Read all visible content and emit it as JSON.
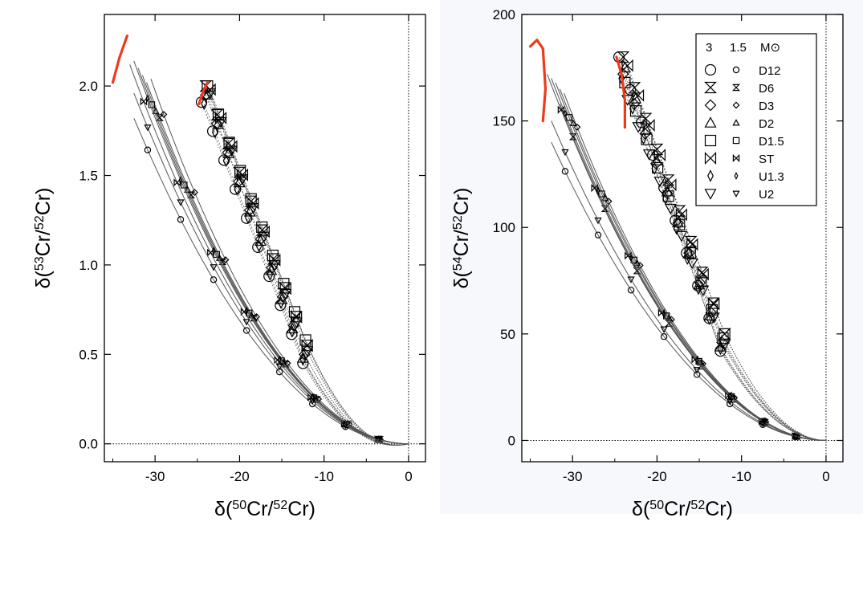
{
  "chart_data": [
    {
      "type": "scatter",
      "panel": "left",
      "xlim": [
        -36,
        2
      ],
      "ylim": [
        -0.1,
        2.4
      ],
      "xticks": [
        -30,
        -20,
        -10,
        0
      ],
      "yticks": [
        0.0,
        0.5,
        1.0,
        1.5,
        2.0
      ],
      "xtick_labels": [
        "-30",
        "-20",
        "-10",
        "0"
      ],
      "ytick_labels": [
        "0.0",
        "0.5",
        "1.0",
        "1.5",
        "2.0"
      ],
      "xlabel": "δ(⁵⁰Cr/⁵²Cr)",
      "ylabel": "δ(⁵³Cr/⁵²Cr)",
      "reference_lines": {
        "y": 0,
        "x": 0
      },
      "models_1_5": [
        {
          "model": "D12",
          "marker": "circle",
          "end": [
            -32.5,
            1.82
          ]
        },
        {
          "model": "D6",
          "marker": "hourglass",
          "end": [
            -31.0,
            2.02
          ]
        },
        {
          "model": "D3",
          "marker": "diamond",
          "end": [
            -30.5,
            2.04
          ]
        },
        {
          "model": "D2",
          "marker": "triangle",
          "end": [
            -31.5,
            2.06
          ]
        },
        {
          "model": "D1.5",
          "marker": "square",
          "end": [
            -32.0,
            2.1
          ]
        },
        {
          "model": "ST",
          "marker": "bowtie",
          "end": [
            -33.0,
            2.12
          ]
        },
        {
          "model": "U1.3",
          "marker": "thin-diamond",
          "end": [
            -32.5,
            2.14
          ]
        },
        {
          "model": "U2",
          "marker": "inv-triangle",
          "end": [
            -32.5,
            1.96
          ]
        }
      ],
      "models_3": [
        {
          "model": "D12",
          "marker": "circle",
          "start": [
            -24.5,
            1.91
          ],
          "end": [
            -12.5,
            0.45
          ]
        },
        {
          "model": "D6",
          "marker": "hourglass",
          "start": [
            -24.0,
            2.0
          ],
          "end": [
            -12.0,
            0.55
          ]
        },
        {
          "model": "D3",
          "marker": "diamond",
          "start": [
            -24.0,
            1.95
          ],
          "end": [
            -12.3,
            0.5
          ]
        },
        {
          "model": "D2",
          "marker": "triangle",
          "start": [
            -23.8,
            1.95
          ],
          "end": [
            -12.5,
            0.48
          ]
        },
        {
          "model": "D1.5",
          "marker": "square",
          "start": [
            -23.8,
            2.0
          ],
          "end": [
            -12.2,
            0.58
          ]
        },
        {
          "model": "ST",
          "marker": "bowtie",
          "start": [
            -23.5,
            1.98
          ],
          "end": [
            -12.0,
            0.55
          ]
        },
        {
          "model": "U1.3",
          "marker": "thin-diamond",
          "start": [
            -24.2,
            1.9
          ],
          "end": [
            -12.5,
            0.47
          ]
        },
        {
          "model": "U2",
          "marker": "inv-triangle",
          "start": [
            -23.5,
            1.96
          ],
          "end": [
            -12.0,
            0.52
          ]
        }
      ],
      "red_segments": [
        {
          "points": [
            [
              -35.0,
              2.02
            ],
            [
              -34.2,
              2.16
            ],
            [
              -33.3,
              2.28
            ]
          ]
        },
        {
          "points": [
            [
              -24.8,
              1.9
            ],
            [
              -24.3,
              1.97
            ],
            [
              -23.8,
              2.02
            ]
          ]
        }
      ]
    },
    {
      "type": "scatter",
      "panel": "right",
      "xlim": [
        -36,
        2
      ],
      "ylim": [
        -10,
        200
      ],
      "xticks": [
        -30,
        -20,
        -10,
        0
      ],
      "yticks": [
        0,
        50,
        100,
        150,
        200
      ],
      "xtick_labels": [
        "-30",
        "-20",
        "-10",
        "0"
      ],
      "ytick_labels": [
        "0",
        "50",
        "100",
        "150",
        "200"
      ],
      "xlabel": "δ(⁵⁰Cr/⁵²Cr)",
      "ylabel": "δ(⁵⁴Cr/⁵²Cr)",
      "reference_lines": {
        "y": 0,
        "x": 0
      },
      "models_1_5": [
        {
          "model": "D12",
          "marker": "circle",
          "end": [
            -32.5,
            140
          ]
        },
        {
          "model": "D6",
          "marker": "hourglass",
          "end": [
            -31.5,
            158
          ]
        },
        {
          "model": "D3",
          "marker": "diamond",
          "end": [
            -31.0,
            163
          ]
        },
        {
          "model": "D2",
          "marker": "triangle",
          "end": [
            -31.5,
            165
          ]
        },
        {
          "model": "D1.5",
          "marker": "square",
          "end": [
            -32.0,
            168
          ]
        },
        {
          "model": "ST",
          "marker": "bowtie",
          "end": [
            -33.0,
            172
          ]
        },
        {
          "model": "U1.3",
          "marker": "thin-diamond",
          "end": [
            -32.5,
            170
          ]
        },
        {
          "model": "U2",
          "marker": "inv-triangle",
          "end": [
            -32.5,
            150
          ]
        }
      ],
      "models_3": [
        {
          "model": "D12",
          "marker": "circle",
          "start": [
            -24.5,
            180
          ],
          "end": [
            -12.5,
            42
          ]
        },
        {
          "model": "D6",
          "marker": "hourglass",
          "start": [
            -24.0,
            180
          ],
          "end": [
            -12.0,
            50
          ]
        },
        {
          "model": "D3",
          "marker": "diamond",
          "start": [
            -24.0,
            172
          ],
          "end": [
            -12.3,
            46
          ]
        },
        {
          "model": "D2",
          "marker": "triangle",
          "start": [
            -23.8,
            175
          ],
          "end": [
            -12.5,
            44
          ]
        },
        {
          "model": "D1.5",
          "marker": "square",
          "start": [
            -23.8,
            168
          ],
          "end": [
            -12.2,
            48
          ]
        },
        {
          "model": "ST",
          "marker": "bowtie",
          "start": [
            -23.5,
            176
          ],
          "end": [
            -12.0,
            50
          ]
        },
        {
          "model": "U1.3",
          "marker": "thin-diamond",
          "start": [
            -24.2,
            170
          ],
          "end": [
            -12.5,
            43
          ]
        },
        {
          "model": "U2",
          "marker": "inv-triangle",
          "start": [
            -23.5,
            160
          ],
          "end": [
            -12.0,
            45
          ]
        }
      ],
      "red_segments": [
        {
          "points": [
            [
              -35.0,
              185
            ],
            [
              -34.2,
              188
            ],
            [
              -33.5,
              184
            ],
            [
              -33.2,
              165
            ],
            [
              -33.5,
              150
            ]
          ]
        },
        {
          "points": [
            [
              -24.8,
              180
            ],
            [
              -24.2,
              172
            ],
            [
              -23.8,
              160
            ],
            [
              -23.8,
              147
            ]
          ]
        }
      ],
      "legend": {
        "placement": "top-right",
        "header": [
          "3",
          "1.5",
          "M⊙"
        ],
        "entries": [
          {
            "label": "D12",
            "marker": "circle"
          },
          {
            "label": "D6",
            "marker": "hourglass"
          },
          {
            "label": "D3",
            "marker": "diamond"
          },
          {
            "label": "D2",
            "marker": "triangle"
          },
          {
            "label": "D1.5",
            "marker": "square"
          },
          {
            "label": "ST",
            "marker": "bowtie"
          },
          {
            "label": "U1.3",
            "marker": "thin-diamond"
          },
          {
            "label": "U2",
            "marker": "inv-triangle"
          }
        ]
      }
    }
  ],
  "colors": {
    "curve": "#555555",
    "marker": "#000000",
    "highlight": "#ee3a1a",
    "right_panel_bg": "#f6f8fc"
  }
}
